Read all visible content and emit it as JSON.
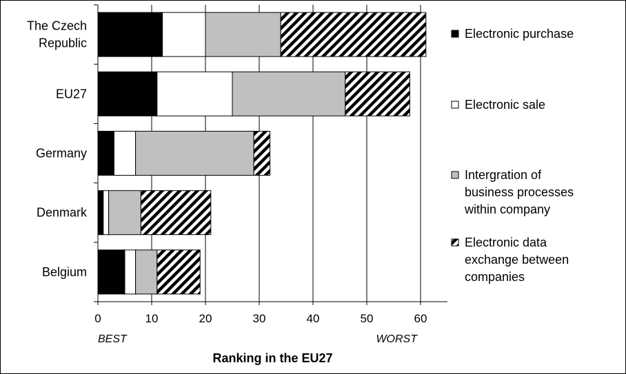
{
  "chart_data": {
    "type": "bar",
    "orientation": "horizontal",
    "stacked": true,
    "categories": [
      "The Czech Republic",
      "EU27",
      "Germany",
      "Denmark",
      "Belgium"
    ],
    "series": [
      {
        "name": "Electronic purchase",
        "values": [
          12,
          11,
          3,
          1,
          5
        ],
        "fill": "solid",
        "color": "#000000"
      },
      {
        "name": "Electronic sale",
        "values": [
          8,
          14,
          4,
          1,
          2
        ],
        "fill": "solid",
        "color": "#ffffff"
      },
      {
        "name": "Intergration of business processes within company",
        "values": [
          14,
          21,
          22,
          6,
          4
        ],
        "fill": "solid",
        "color": "#c0c0c0"
      },
      {
        "name": "Electronic data exchange between companies",
        "values": [
          27,
          12,
          3,
          13,
          8
        ],
        "fill": "hatch",
        "color": "#000000"
      }
    ],
    "xlim": [
      0,
      65
    ],
    "xticks": [
      0,
      10,
      20,
      30,
      40,
      50,
      60
    ],
    "xlabel": "Ranking in the EU27",
    "x_min_note": "BEST",
    "x_max_note": "WORST",
    "grid": "vertical",
    "legend_position": "right"
  }
}
